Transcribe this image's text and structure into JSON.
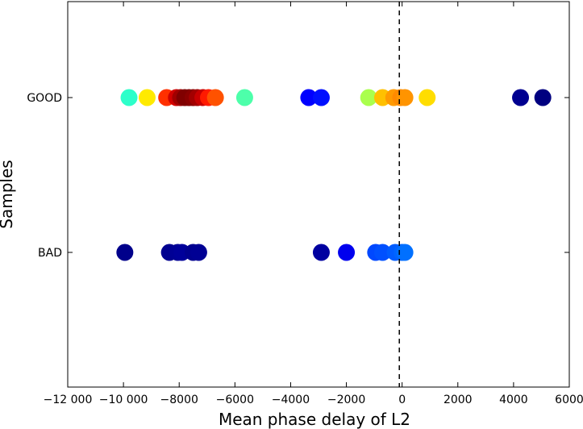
{
  "chart_data": {
    "type": "scatter",
    "title": "",
    "xlabel": "Mean phase delay of L2",
    "ylabel": "Samples",
    "xlim": [
      -12000,
      6000
    ],
    "xticks": [
      -12000,
      -10000,
      -8000,
      -6000,
      -4000,
      -2000,
      0,
      2000,
      4000,
      6000
    ],
    "xtick_labels": [
      "−12 000",
      "−10 000",
      "−8000",
      "−6000",
      "−4000",
      "−2000",
      "0",
      "2000",
      "4000",
      "6000"
    ],
    "categories": [
      "GOOD",
      "BAD"
    ],
    "reference_line": {
      "x": -100,
      "style": "dashed",
      "color": "#000000"
    },
    "grid": false,
    "series": [
      {
        "category": "GOOD",
        "points": [
          {
            "x": -9800,
            "color": "#2dffca"
          },
          {
            "x": -9150,
            "color": "#ffea00"
          },
          {
            "x": -8450,
            "color": "#ff3000"
          },
          {
            "x": -8100,
            "color": "#d10000"
          },
          {
            "x": -7950,
            "color": "#a10000"
          },
          {
            "x": -7800,
            "color": "#800000"
          },
          {
            "x": -7650,
            "color": "#800000"
          },
          {
            "x": -7500,
            "color": "#8b0000"
          },
          {
            "x": -7350,
            "color": "#a30000"
          },
          {
            "x": -7150,
            "color": "#c80000"
          },
          {
            "x": -6950,
            "color": "#ff1a00"
          },
          {
            "x": -6700,
            "color": "#ff5200"
          },
          {
            "x": -5650,
            "color": "#4dffaa"
          },
          {
            "x": -3350,
            "color": "#0000ff"
          },
          {
            "x": -2900,
            "color": "#0010ff"
          },
          {
            "x": -1200,
            "color": "#aaff4d"
          },
          {
            "x": -700,
            "color": "#ffc000"
          },
          {
            "x": -300,
            "color": "#ff9a00"
          },
          {
            "x": -50,
            "color": "#ff8a00"
          },
          {
            "x": 100,
            "color": "#ff9400"
          },
          {
            "x": 900,
            "color": "#ffdd00"
          },
          {
            "x": 4250,
            "color": "#000090"
          },
          {
            "x": 5050,
            "color": "#000080"
          }
        ]
      },
      {
        "category": "BAD",
        "points": [
          {
            "x": -9950,
            "color": "#00008b"
          },
          {
            "x": -8350,
            "color": "#000090"
          },
          {
            "x": -8050,
            "color": "#000095"
          },
          {
            "x": -7900,
            "color": "#00009a"
          },
          {
            "x": -7500,
            "color": "#00008f"
          },
          {
            "x": -7300,
            "color": "#000094"
          },
          {
            "x": -2900,
            "color": "#0000a0"
          },
          {
            "x": -2000,
            "color": "#0000ee"
          },
          {
            "x": -950,
            "color": "#0048ff"
          },
          {
            "x": -700,
            "color": "#0050ff"
          },
          {
            "x": -250,
            "color": "#005cff"
          },
          {
            "x": 0,
            "color": "#0064ff"
          },
          {
            "x": 100,
            "color": "#0070ff"
          }
        ]
      }
    ]
  }
}
